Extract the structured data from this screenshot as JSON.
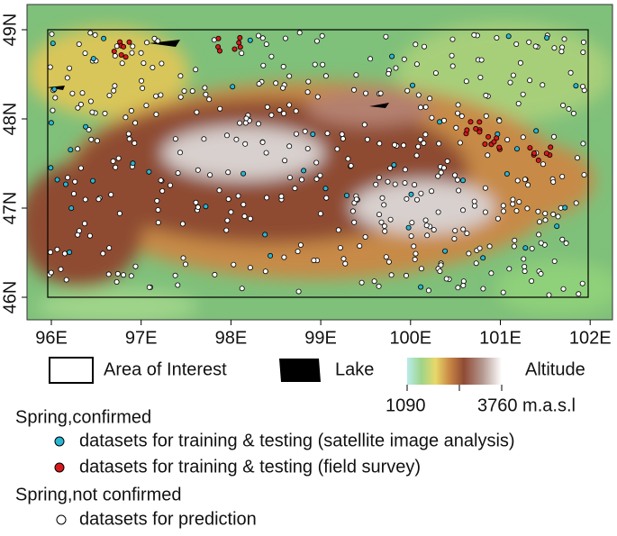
{
  "map": {
    "x_labels": [
      "96E",
      "97E",
      "98E",
      "99E",
      "100E",
      "101E",
      "102E"
    ],
    "y_labels": [
      "49N",
      "48N",
      "47N",
      "46N"
    ]
  },
  "legend": {
    "area_of_interest": "Area of Interest",
    "lake": "Lake",
    "altitude": "Altitude",
    "altitude_min": "1090",
    "altitude_max": "3760 m.a.s.l",
    "groups": [
      {
        "title": "Spring,confirmed",
        "items": [
          "datasets for training & testing (satellite image analysis)",
          "datasets for training & testing (field survey)"
        ]
      },
      {
        "title": "Spring,not confirmed",
        "items": [
          "datasets for prediction"
        ]
      }
    ]
  }
}
